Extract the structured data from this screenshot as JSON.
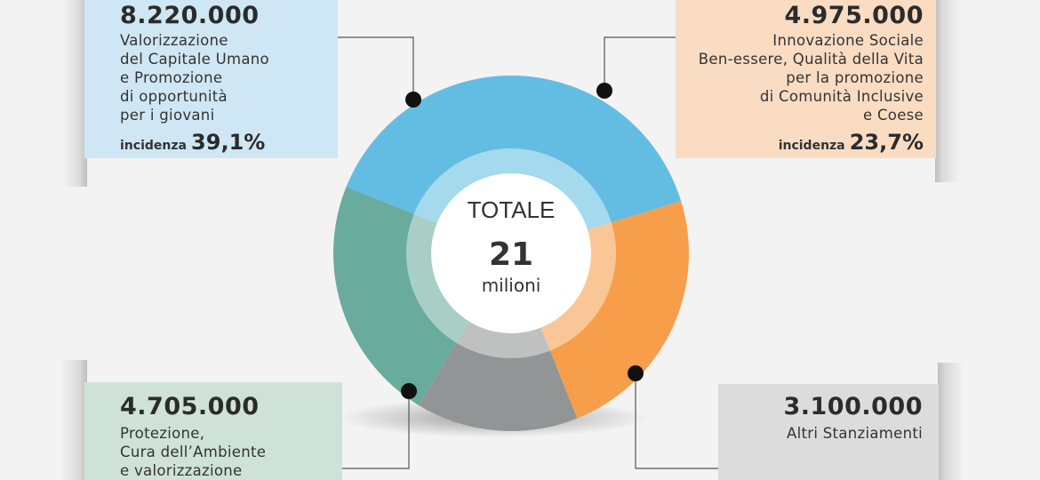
{
  "chart_data": {
    "type": "donut",
    "center": {
      "title": "TOTALE",
      "value": "21",
      "unit": "milioni"
    },
    "slices": [
      {
        "label": "Valorizzazione del Capitale Umano e Promozione di opportunità per i giovani",
        "value": 8220000,
        "display": "8.220.000",
        "incidence": "39,1%",
        "color": "#63bde2"
      },
      {
        "label": "Innovazione Sociale Ben-essere, Qualità della Vita per la promozione di Comunità Inclusive e Coese",
        "value": 4975000,
        "display": "4.975.000",
        "incidence": "23,7%",
        "color": "#f79e4a"
      },
      {
        "label": "Altri Stanziamenti",
        "value": 3100000,
        "display": "3.100.000",
        "color": "#919595"
      },
      {
        "label": "Protezione, Cura dell’Ambiente e valorizzazione",
        "value": 4705000,
        "display": "4.705.000",
        "color": "#69ab9d"
      }
    ]
  },
  "panels": {
    "p1": {
      "amount": "8.220.000",
      "desc": "Valorizzazione\ndel Capitale Umano\ne Promozione\ndi opportunità\nper i giovani",
      "inc_label": "incidenza",
      "inc_value": "39,1%"
    },
    "p2": {
      "amount": "4.975.000",
      "desc": "Innovazione Sociale\nBen-essere, Qualità della Vita\nper la promozione\ndi Comunità Inclusive\ne Coese",
      "inc_label": "incidenza",
      "inc_value": "23,7%"
    },
    "p3": {
      "amount": "4.705.000",
      "desc": "Protezione,\nCura dell’Ambiente\ne valorizzazione"
    },
    "p4": {
      "amount": "3.100.000",
      "desc": "Altri Stanziamenti"
    }
  }
}
